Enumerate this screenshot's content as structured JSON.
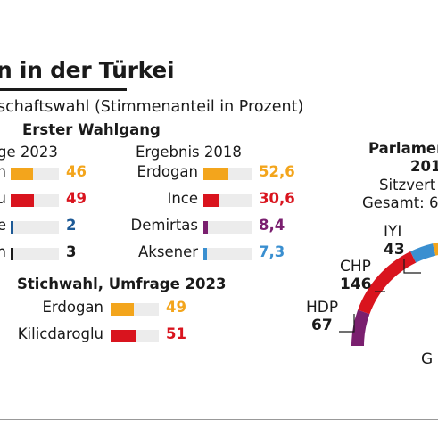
{
  "title": "n in der Türkei",
  "subtitle": "schaftswahl (Stimmenanteil in Prozent)",
  "colors": {
    "orange": "#f3a51c",
    "red": "#d9141e",
    "blue": "#3a8fd0",
    "darkblue": "#1e5a96",
    "purple": "#7a1f6f",
    "black": "#1a1a1a",
    "track": "#ececec"
  },
  "chart_data": [
    {
      "type": "bar",
      "title": "Erster Wahlgang",
      "subtitle": "ge 2023",
      "categories": [
        "n",
        "u",
        "e",
        "n"
      ],
      "values": [
        46,
        49,
        2,
        3
      ],
      "value_labels": [
        "46",
        "49",
        "2",
        "3"
      ],
      "bar_colors": [
        "#f3a51c",
        "#d9141e",
        "#1e5a96",
        "#1a1a1a"
      ],
      "value_colors": [
        "#f3a51c",
        "#d9141e",
        "#1e5a96",
        "#1a1a1a"
      ],
      "xlim": [
        0,
        100
      ]
    },
    {
      "type": "bar",
      "title": "Ergebnis 2018",
      "categories": [
        "Erdogan",
        "Ince",
        "Demirtas",
        "Aksener"
      ],
      "values": [
        52.6,
        30.6,
        8.4,
        7.3
      ],
      "value_labels": [
        "52,6",
        "30,6",
        "8,4",
        "7,3"
      ],
      "bar_colors": [
        "#f3a51c",
        "#d9141e",
        "#7a1f6f",
        "#3a8fd0"
      ],
      "value_colors": [
        "#f3a51c",
        "#d9141e",
        "#7a1f6f",
        "#3a8fd0"
      ],
      "xlim": [
        0,
        100
      ]
    },
    {
      "type": "bar",
      "title": "Stichwahl, Umfrage 2023",
      "categories": [
        "Erdogan",
        "Kilicdaroglu"
      ],
      "values": [
        49,
        51
      ],
      "value_labels": [
        "49",
        "51"
      ],
      "bar_colors": [
        "#f3a51c",
        "#d9141e"
      ],
      "value_colors": [
        "#f3a51c",
        "#d9141e"
      ],
      "xlim": [
        0,
        100
      ]
    },
    {
      "type": "pie",
      "title": "Parlamen",
      "subtitle_lines": [
        "201",
        "Sitzvert",
        "Gesamt: 6"
      ],
      "series": [
        {
          "name": "HDP",
          "value": 67,
          "color": "#7a1f6f"
        },
        {
          "name": "CHP",
          "value": 146,
          "color": "#d9141e"
        },
        {
          "name": "IYI",
          "value": 43,
          "color": "#3a8fd0"
        }
      ],
      "labels": [
        {
          "name": "HDP",
          "value": "67"
        },
        {
          "name": "CHP",
          "value": "146"
        },
        {
          "name": "IYI",
          "value": "43"
        },
        {
          "name": "G",
          "value": ""
        }
      ]
    }
  ]
}
